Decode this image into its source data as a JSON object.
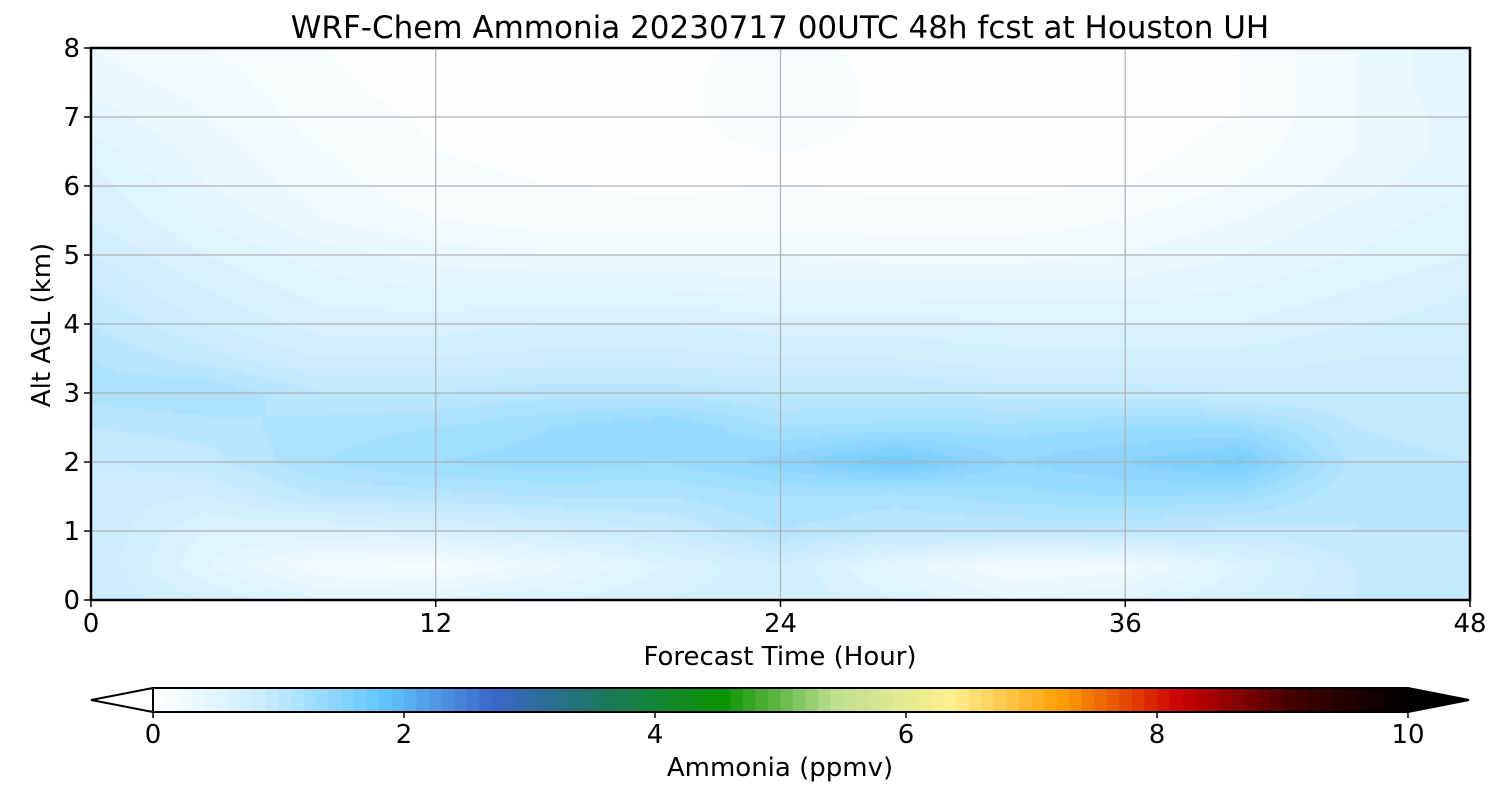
{
  "chart_data": {
    "type": "heatmap",
    "title": "WRF-Chem Ammonia  20230717 00UTC 48h fcst at Houston UH",
    "xlabel": "Forecast Time (Hour)",
    "ylabel": "Alt AGL (km)",
    "xlim": [
      0,
      48
    ],
    "ylim": [
      0,
      8
    ],
    "x_ticks": [
      "0",
      "12",
      "24",
      "36",
      "48"
    ],
    "y_ticks": [
      "0",
      "1",
      "2",
      "3",
      "4",
      "5",
      "6",
      "7",
      "8"
    ],
    "grid": true,
    "colorbar": {
      "label": "Ammonia  (ppmv)",
      "min": 0,
      "max": 10,
      "ticks": [
        "0",
        "2",
        "4",
        "6",
        "8",
        "10"
      ],
      "extend": "both",
      "colors": [
        "#ffffff",
        "#c8ecff",
        "#62c6ff",
        "#3a66c8",
        "#1a7a5a",
        "#0a9400",
        "#c0e090",
        "#fff090",
        "#ff9a00",
        "#cc0000",
        "#400000",
        "#000000"
      ]
    },
    "field": {
      "x_hours": [
        0,
        4,
        8,
        12,
        16,
        20,
        24,
        28,
        32,
        36,
        40,
        44,
        48
      ],
      "z_km": [
        0,
        0.5,
        1,
        1.5,
        2,
        2.5,
        3,
        3.5,
        4,
        4.5,
        5,
        5.5,
        6,
        6.5,
        7,
        7.5,
        8
      ],
      "values_ppmv": [
        [
          0.9,
          0.7,
          0.5,
          0.5,
          0.6,
          0.7,
          0.8,
          0.6,
          0.4,
          0.5,
          0.7,
          0.9,
          0.95
        ],
        [
          0.9,
          0.5,
          0.2,
          0.15,
          0.35,
          0.6,
          0.8,
          0.45,
          0.2,
          0.25,
          0.6,
          0.9,
          0.95
        ],
        [
          0.9,
          0.6,
          0.6,
          0.7,
          0.8,
          0.9,
          1.1,
          1.0,
          1.0,
          1.0,
          0.95,
          1.0,
          1.0
        ],
        [
          0.85,
          0.8,
          1.0,
          1.05,
          1.1,
          1.1,
          1.2,
          1.15,
          1.25,
          1.3,
          1.25,
          1.0,
          1.0
        ],
        [
          0.9,
          0.95,
          1.2,
          1.3,
          1.35,
          1.3,
          1.45,
          1.7,
          1.4,
          1.5,
          1.65,
          1.05,
          1.0
        ],
        [
          1.0,
          1.05,
          1.15,
          1.2,
          1.3,
          1.4,
          1.2,
          1.25,
          1.25,
          1.3,
          1.3,
          1.0,
          0.95
        ],
        [
          1.15,
          1.2,
          1.0,
          1.0,
          1.05,
          1.05,
          1.0,
          1.0,
          0.95,
          0.95,
          0.9,
          0.9,
          0.9
        ],
        [
          1.1,
          0.95,
          0.8,
          0.8,
          0.85,
          0.85,
          0.8,
          0.8,
          0.75,
          0.75,
          0.75,
          0.8,
          0.8
        ],
        [
          1.0,
          0.8,
          0.65,
          0.65,
          0.7,
          0.7,
          0.65,
          0.65,
          0.6,
          0.6,
          0.6,
          0.7,
          0.75
        ],
        [
          0.9,
          0.7,
          0.55,
          0.5,
          0.5,
          0.5,
          0.45,
          0.45,
          0.45,
          0.45,
          0.5,
          0.6,
          0.7
        ],
        [
          0.8,
          0.6,
          0.45,
          0.35,
          0.3,
          0.3,
          0.3,
          0.25,
          0.25,
          0.3,
          0.4,
          0.5,
          0.6
        ],
        [
          0.7,
          0.5,
          0.3,
          0.2,
          0.15,
          0.15,
          0.15,
          0.15,
          0.15,
          0.2,
          0.3,
          0.45,
          0.55
        ],
        [
          0.65,
          0.4,
          0.25,
          0.12,
          0.1,
          0.08,
          0.1,
          0.08,
          0.08,
          0.1,
          0.2,
          0.35,
          0.5
        ],
        [
          0.55,
          0.35,
          0.2,
          0.1,
          0.08,
          0.05,
          0.1,
          0.06,
          0.05,
          0.05,
          0.15,
          0.3,
          0.45
        ],
        [
          0.45,
          0.3,
          0.15,
          0.08,
          0.08,
          0.05,
          0.2,
          0.05,
          0.05,
          0.05,
          0.1,
          0.3,
          0.45
        ],
        [
          0.35,
          0.25,
          0.12,
          0.05,
          0.05,
          0.05,
          0.2,
          0.05,
          0.05,
          0.05,
          0.1,
          0.3,
          0.5
        ],
        [
          0.3,
          0.2,
          0.1,
          0.05,
          0.05,
          0.05,
          0.15,
          0.05,
          0.05,
          0.05,
          0.1,
          0.3,
          0.5
        ]
      ]
    }
  }
}
